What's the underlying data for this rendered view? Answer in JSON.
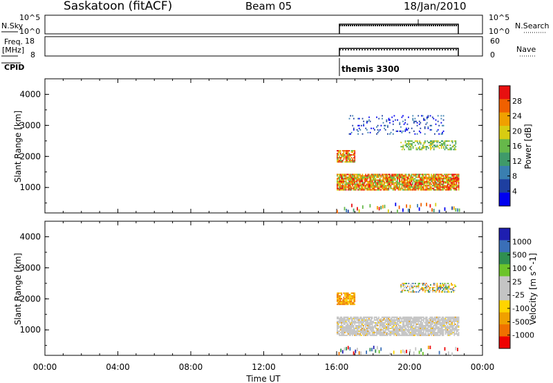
{
  "header": {
    "station": "Saskatoon (fitACF)",
    "beam": "Beam 05",
    "date": "18/Jan/2010"
  },
  "panels": {
    "nsky_label": "N.Sky",
    "nsky_ticks": [
      "10^5",
      "10^0"
    ],
    "nsearch_label": "N.Search",
    "freq_label_top": "Freq.",
    "freq_label_unit": "[MHz]",
    "freq_ticks": [
      "18",
      "8"
    ],
    "nave_ticks": [
      "60",
      "0"
    ],
    "nave_label": "Nave",
    "cpid_label": "CPID",
    "cpid_name": "themis 3300"
  },
  "colors": {
    "power_scale": [
      "#0000f0",
      "#1e3fa0",
      "#3a7fb0",
      "#3f9a6a",
      "#66b84a",
      "#d8cc12",
      "#f0a000",
      "#f06000",
      "#e81010"
    ],
    "velocity_scale": [
      "#ee0000",
      "#f07000",
      "#f0a000",
      "#ffd400",
      "#c4c4c4",
      "#c4c4c4",
      "#6cc42a",
      "#2f8f50",
      "#3a6fb8",
      "#1e1eb0"
    ]
  },
  "chart_data": [
    {
      "type": "heatmap",
      "name": "power",
      "ylabel": "Slant Range [km]",
      "colorbar_label": "Power [dB]",
      "colorbar_ticks": [
        "28",
        "24",
        "20",
        "16",
        "12",
        "8",
        "4"
      ],
      "yticks": [
        "4000",
        "3000",
        "2000",
        "1000"
      ],
      "x_range": [
        "00:00",
        "24:00"
      ],
      "ylim": [
        180,
        4500
      ],
      "data_time_range": [
        "16:00",
        "22:48"
      ],
      "echo_bands": [
        {
          "range_km": [
            900,
            1400
          ],
          "level": "high",
          "time": [
            "16:00",
            "22:40"
          ]
        },
        {
          "range_km": [
            1800,
            2200
          ],
          "level": "high",
          "time": [
            "16:00",
            "17:00"
          ]
        },
        {
          "range_km": [
            2200,
            2500
          ],
          "level": "medium",
          "time": [
            "19:30",
            "22:30"
          ]
        },
        {
          "range_km": [
            2700,
            3300
          ],
          "level": "low",
          "time": [
            "16:40",
            "21:50"
          ]
        }
      ]
    },
    {
      "type": "heatmap",
      "name": "velocity",
      "ylabel": "Slant Range [km]",
      "colorbar_label": "Velocity [m s^-1]",
      "colorbar_ticks": [
        "1000",
        "500",
        "100",
        "25",
        "-25",
        "-100",
        "-500",
        "-1000"
      ],
      "yticks": [
        "4000",
        "3000",
        "2000",
        "1000"
      ],
      "xticks": [
        "00:00",
        "04:00",
        "08:00",
        "12:00",
        "16:00",
        "20:00",
        "00:00"
      ],
      "xlabel": "Time UT",
      "x_range": [
        "00:00",
        "24:00"
      ],
      "ylim": [
        180,
        4500
      ],
      "data_time_range": [
        "16:00",
        "22:48"
      ],
      "echo_bands": [
        {
          "range_km": [
            800,
            1400
          ],
          "level": "ground",
          "time": [
            "16:00",
            "22:40"
          ]
        },
        {
          "range_km": [
            1800,
            2200
          ],
          "level": "negative",
          "time": [
            "16:00",
            "17:00"
          ]
        },
        {
          "range_km": [
            2200,
            2500
          ],
          "level": "mixed",
          "time": [
            "19:30",
            "22:30"
          ]
        }
      ]
    }
  ]
}
